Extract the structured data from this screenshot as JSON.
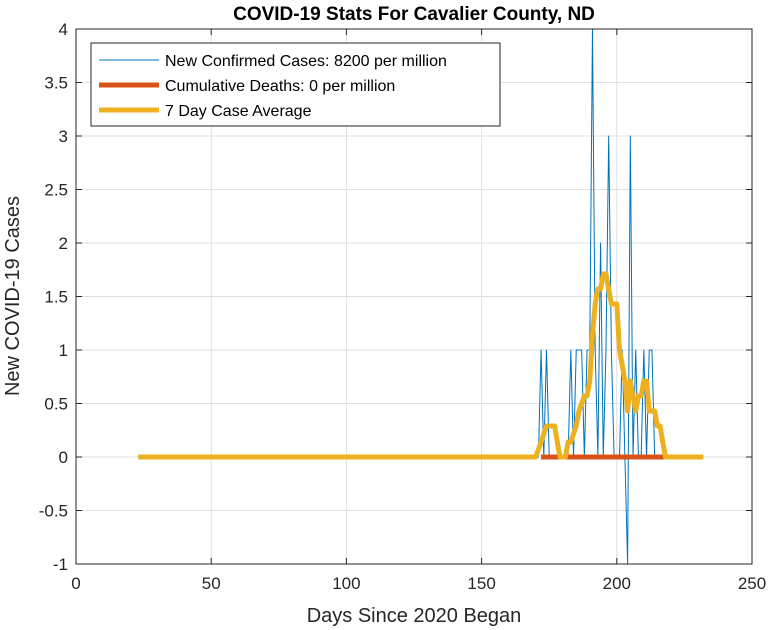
{
  "chart_data": {
    "type": "line",
    "title": "COVID-19 Stats For Cavalier County, ND",
    "xlabel": "Days Since 2020 Began",
    "ylabel": "New COVID-19 Cases",
    "xlim": [
      0,
      250
    ],
    "ylim": [
      -1,
      4
    ],
    "xticks": [
      0,
      50,
      100,
      150,
      200,
      250
    ],
    "yticks": [
      -1,
      -0.5,
      0,
      0.5,
      1,
      1.5,
      2,
      2.5,
      3,
      3.5,
      4
    ],
    "xtick_labels": [
      "0",
      "50",
      "100",
      "150",
      "200",
      "250"
    ],
    "ytick_labels": [
      "-1",
      "-0.5",
      "0",
      "0.5",
      "1",
      "1.5",
      "2",
      "2.5",
      "3",
      "3.5",
      "4"
    ],
    "grid": true,
    "legend_position": "top-left",
    "series": [
      {
        "name": "New Confirmed Cases: 8200 per million",
        "color": "#0072BD",
        "x": [
          23,
          170,
          171,
          172,
          173,
          174,
          175,
          176,
          177,
          178,
          179,
          180,
          181,
          182,
          183,
          184,
          185,
          186,
          187,
          188,
          189,
          190,
          191,
          192,
          193,
          194,
          195,
          196,
          197,
          198,
          199,
          200,
          201,
          202,
          203,
          204,
          205,
          206,
          207,
          208,
          209,
          210,
          211,
          212,
          213,
          214,
          215,
          216,
          217,
          218,
          232
        ],
        "values": [
          0,
          0,
          0,
          1,
          0,
          1,
          0,
          0,
          0,
          0,
          0,
          0,
          0,
          0,
          1,
          0,
          1,
          1,
          1,
          0,
          1,
          1,
          4,
          1,
          0,
          2,
          0,
          1,
          3,
          1,
          0,
          0,
          0,
          1,
          0,
          -1,
          3,
          0,
          1,
          0,
          0,
          1,
          0,
          1,
          1,
          0,
          0,
          0,
          0,
          0,
          0
        ]
      },
      {
        "name": "Cumulative Deaths: 0 per million",
        "color": "#D95319",
        "x": [
          172,
          219
        ],
        "values": [
          0,
          0
        ]
      },
      {
        "name": "7 Day Case Average",
        "color": "#EDB120",
        "x": [
          23,
          170,
          171,
          172,
          174,
          175,
          176,
          177,
          178,
          179,
          180,
          181,
          182,
          183,
          185,
          186,
          188,
          189,
          190,
          191,
          192,
          193,
          194,
          195,
          196,
          197,
          198,
          199,
          200,
          201,
          202,
          203,
          204,
          205,
          206,
          207,
          208,
          209,
          210,
          211,
          212,
          213,
          214,
          215,
          216,
          217,
          218,
          219,
          232
        ],
        "values": [
          0,
          0,
          0.07,
          0.14,
          0.29,
          0.29,
          0.29,
          0.29,
          0.14,
          0,
          0,
          0,
          0.14,
          0.14,
          0.29,
          0.43,
          0.57,
          0.57,
          0.71,
          1.14,
          1.43,
          1.57,
          1.57,
          1.71,
          1.71,
          1.57,
          1.43,
          1.43,
          1.43,
          1.0,
          0.86,
          0.71,
          0.43,
          0.71,
          0.57,
          0.43,
          0.57,
          0.57,
          0.71,
          0.71,
          0.43,
          0.43,
          0.43,
          0.29,
          0.29,
          0.14,
          0,
          0,
          0
        ]
      }
    ]
  }
}
